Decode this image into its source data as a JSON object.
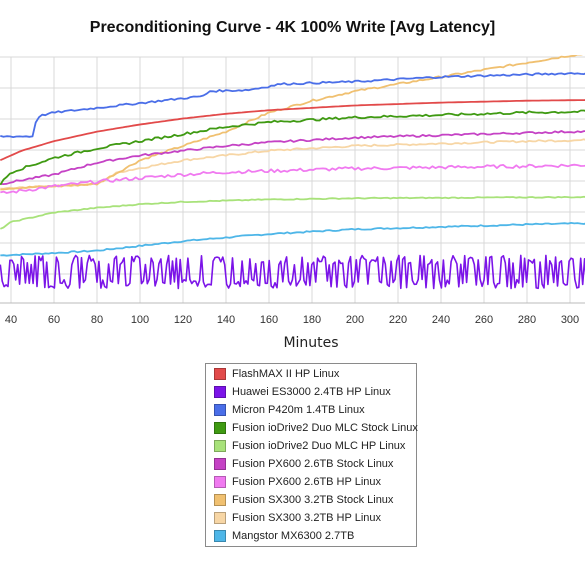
{
  "chart_data": {
    "type": "line",
    "title": "Preconditioning Curve - 4K 100% Write [Avg Latency]",
    "xlabel": "Minutes",
    "ylabel": "",
    "x_ticks": [
      40,
      60,
      80,
      100,
      120,
      140,
      160,
      180,
      200,
      220,
      240,
      260,
      280,
      300
    ],
    "xlim": [
      35,
      310
    ],
    "ylim": [
      0,
      100
    ],
    "grid": true,
    "legend_position": "bottom",
    "series": [
      {
        "name": "FlashMAX II HP Linux",
        "color": "#e24a4a",
        "x": [
          35,
          45,
          60,
          80,
          100,
          120,
          140,
          160,
          180,
          200,
          220,
          240,
          260,
          280,
          300,
          310
        ],
        "y": [
          60,
          64,
          68,
          72,
          75,
          77.5,
          79.5,
          81,
          82,
          83,
          83.6,
          84.2,
          84.6,
          85,
          85.2,
          85.3
        ]
      },
      {
        "name": "Huawei ES3000 2.4TB HP Linux",
        "color": "#7b14e8",
        "x": [
          35,
          310
        ],
        "y": [
          13,
          13
        ],
        "noise": 6,
        "osc": true
      },
      {
        "name": "Micron P420m 1.4TB Linux",
        "color": "#4a6ee8",
        "x": [
          35,
          50,
          52,
          55,
          60,
          70,
          80,
          90,
          100,
          120,
          130,
          132,
          150,
          160,
          165,
          200,
          220,
          240,
          260,
          280,
          300,
          310
        ],
        "y": [
          70,
          70,
          78,
          79,
          80,
          81,
          82,
          83,
          84,
          86,
          87,
          89,
          89.5,
          91,
          92,
          93,
          94,
          95,
          95.5,
          96,
          96.5,
          96.5
        ],
        "noise": 0.4
      },
      {
        "name": "Fusion ioDrive2 Duo MLC Stock Linux",
        "color": "#3f9a12",
        "x": [
          35,
          40,
          60,
          80,
          100,
          120,
          140,
          160,
          180,
          200,
          220,
          240,
          260,
          280,
          300,
          310
        ],
        "y": [
          50,
          55,
          61,
          65,
          68,
          71,
          74,
          76,
          77,
          78,
          78.5,
          79,
          79.5,
          80,
          80.3,
          80.5
        ],
        "noise": 0.5
      },
      {
        "name": "Fusion ioDrive2 Duo MLC HP Linux",
        "color": "#a8e27a",
        "x": [
          35,
          40,
          60,
          80,
          100,
          120,
          140,
          160,
          200,
          240,
          280,
          310
        ],
        "y": [
          31,
          34,
          38,
          40,
          41.5,
          42.5,
          43,
          43.5,
          44,
          44.2,
          44.4,
          44.5
        ],
        "noise": 0.2
      },
      {
        "name": "Fusion PX600 2.6TB Stock Linux",
        "color": "#c542c5",
        "x": [
          35,
          60,
          80,
          100,
          120,
          140,
          160,
          180,
          200,
          220,
          240,
          260,
          280,
          300,
          310
        ],
        "y": [
          50,
          54,
          59,
          62,
          64,
          66,
          67.5,
          68.5,
          69.5,
          70,
          70.5,
          71,
          71.5,
          72,
          72
        ],
        "noise": 0.4
      },
      {
        "name": "Fusion PX600 2.6TB HP Linux",
        "color": "#f07af0",
        "x": [
          35,
          60,
          80,
          100,
          120,
          140,
          160,
          180,
          200,
          240,
          280,
          310
        ],
        "y": [
          46,
          49,
          51,
          52.5,
          54,
          55,
          55.5,
          56,
          56.5,
          57,
          57.5,
          58
        ],
        "noise": 0.7
      },
      {
        "name": "Fusion SX300 3.2TB Stock Linux",
        "color": "#f0c070",
        "x": [
          35,
          80,
          100,
          120,
          140,
          160,
          180,
          200,
          220,
          240,
          260,
          280,
          300,
          310
        ],
        "y": [
          48,
          50,
          60,
          66,
          72,
          80,
          85,
          89,
          92,
          95,
          98,
          101,
          104,
          105
        ],
        "noise": 0.4
      },
      {
        "name": "Fusion SX300 3.2TB HP Linux",
        "color": "#f7d6a5",
        "x": [
          35,
          80,
          90,
          120,
          160,
          200,
          240,
          280,
          310
        ],
        "y": [
          48,
          50,
          55,
          60,
          64,
          66,
          67,
          68,
          68.5
        ],
        "noise": 0.4
      },
      {
        "name": "Mangstor MX6300 2.7TB",
        "color": "#4eb6e8",
        "x": [
          35,
          60,
          80,
          100,
          120,
          140,
          160,
          180,
          200,
          240,
          280,
          310
        ],
        "y": [
          20,
          21,
          22,
          24,
          26,
          27.5,
          29,
          30,
          31,
          32,
          33,
          33.5
        ],
        "noise": 0.3
      }
    ]
  }
}
